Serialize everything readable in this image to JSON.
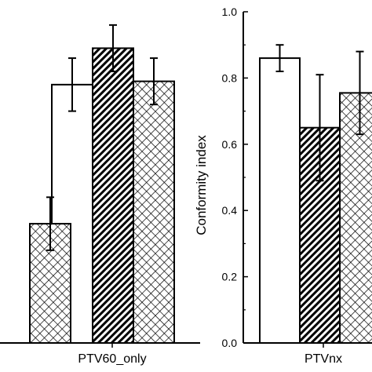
{
  "colors": {
    "axis": "#000000",
    "bar_fill": "#ffffff",
    "bar_stroke": "#000000"
  },
  "chart_data": [
    {
      "type": "bar",
      "title": "",
      "xlabel": "",
      "ylabel": "",
      "categories": [
        "",
        "PTV60_only"
      ],
      "series": [
        {
          "pattern": "open",
          "values": [
            null,
            0.78
          ],
          "errors": [
            null,
            0.08
          ]
        },
        {
          "pattern": "diagonal-hatch",
          "values": [
            null,
            0.89
          ],
          "errors": [
            null,
            0.07
          ]
        },
        {
          "pattern": "crosshatch",
          "values": [
            0.36,
            0.79
          ],
          "errors": [
            0.08,
            0.07
          ]
        }
      ],
      "ylim": [
        0,
        1.0
      ],
      "grid": false,
      "legend": "none"
    },
    {
      "type": "bar",
      "title": "",
      "xlabel": "",
      "ylabel": "Conformity index",
      "categories": [
        "PTVnx"
      ],
      "series": [
        {
          "pattern": "open",
          "values": [
            0.86
          ],
          "errors": [
            0.04
          ]
        },
        {
          "pattern": "diagonal-hatch",
          "values": [
            0.65
          ],
          "errors": [
            0.16
          ]
        },
        {
          "pattern": "crosshatch",
          "values": [
            0.755
          ],
          "errors": [
            0.125
          ]
        }
      ],
      "ylim": [
        0,
        1.0
      ],
      "yticks": [
        "0.0",
        "0.2",
        "0.4",
        "0.6",
        "0.8",
        "1.0"
      ],
      "grid": false,
      "legend": "none"
    }
  ]
}
